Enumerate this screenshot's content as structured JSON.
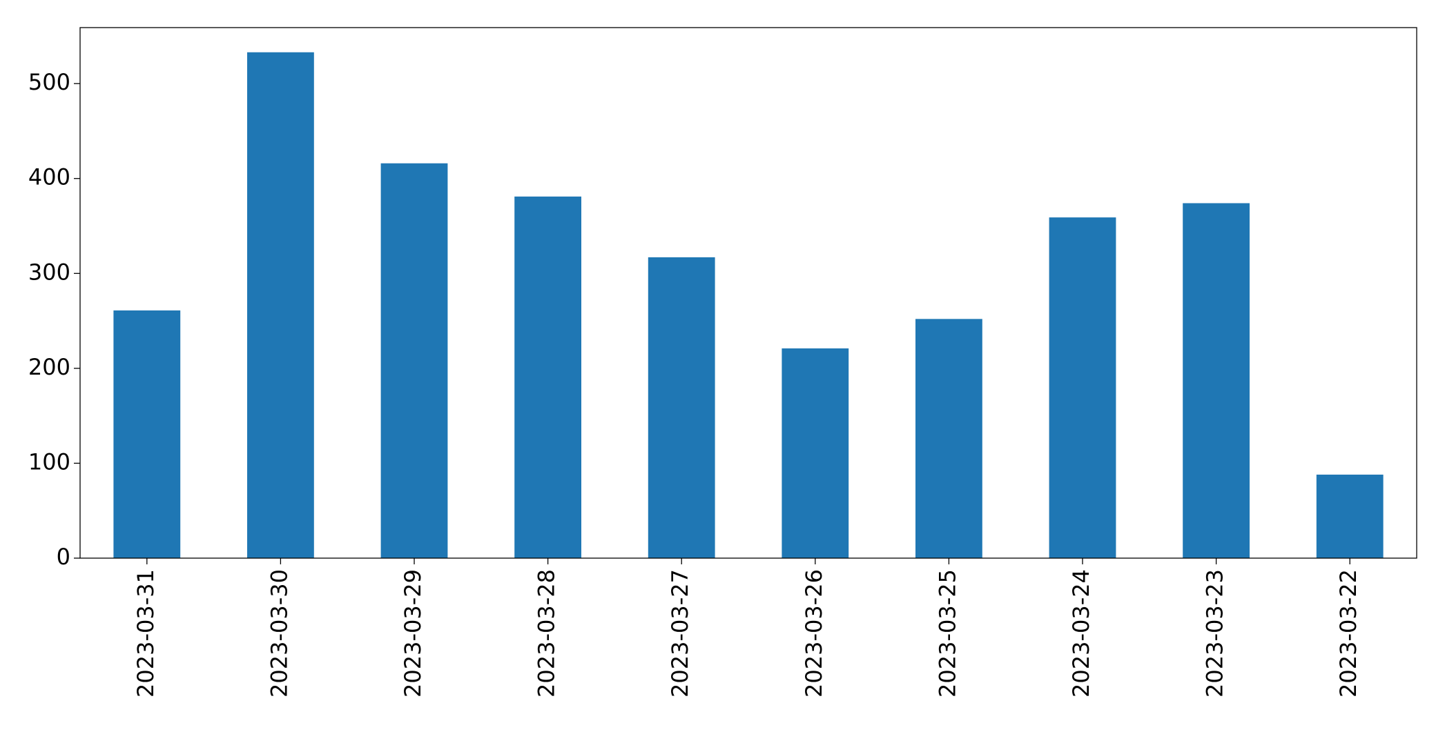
{
  "chart_data": {
    "type": "bar",
    "categories": [
      "2023-03-31",
      "2023-03-30",
      "2023-03-29",
      "2023-03-28",
      "2023-03-27",
      "2023-03-26",
      "2023-03-25",
      "2023-03-24",
      "2023-03-23",
      "2023-03-22"
    ],
    "values": [
      261,
      533,
      416,
      381,
      317,
      221,
      252,
      359,
      374,
      88
    ],
    "color": "#1f77b4",
    "ylim": [
      0,
      559
    ],
    "yticks": [
      0,
      100,
      200,
      300,
      400,
      500
    ],
    "grid": false
  }
}
